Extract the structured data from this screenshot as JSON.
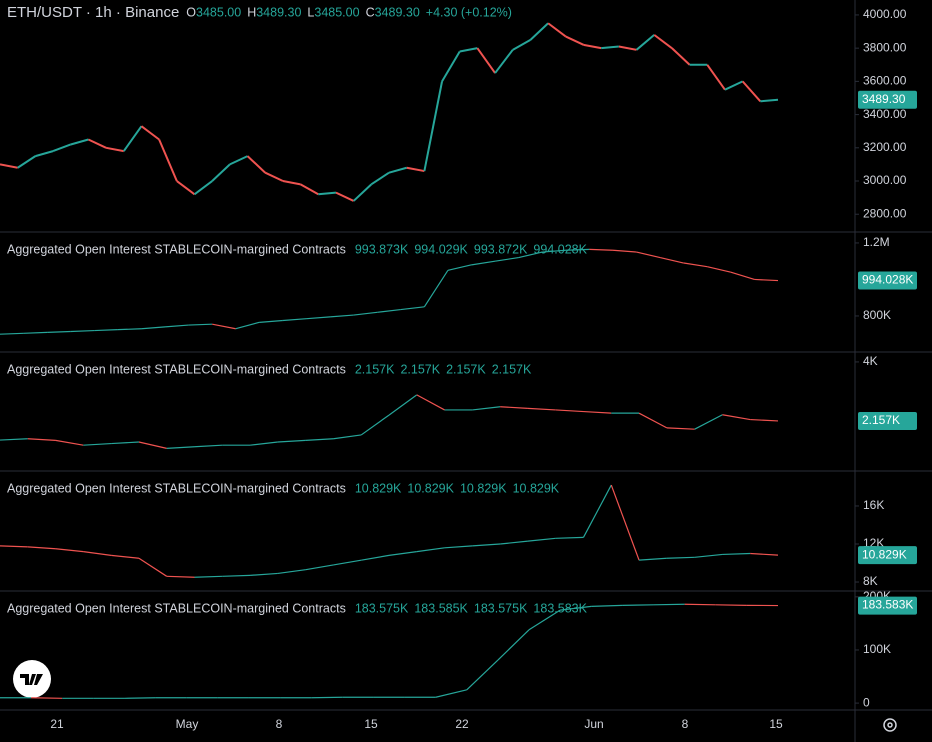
{
  "header": {
    "title": "ETH/USDT · 1h · Binance",
    "ohlc": [
      {
        "key": "O",
        "value": "3485.00"
      },
      {
        "key": "H",
        "value": "3489.30"
      },
      {
        "key": "L",
        "value": "3485.00"
      },
      {
        "key": "C",
        "value": "3489.30"
      }
    ],
    "change": "+4.30 (+0.12%)"
  },
  "panes": [
    {
      "ylim": [
        4090,
        2699
      ],
      "yticks": [
        {
          "value": 4000,
          "label": "4000.00"
        },
        {
          "value": 3800,
          "label": "3800.00"
        },
        {
          "value": 3600,
          "label": "3600.00"
        },
        {
          "value": 3400,
          "label": "3400.00"
        },
        {
          "value": 3200,
          "label": "3200.00"
        },
        {
          "value": 3000,
          "label": "3000.00"
        },
        {
          "value": 2800,
          "label": "2800.00"
        }
      ],
      "last": {
        "value": 3489.3,
        "label": "3489.30"
      },
      "values": [
        3100,
        3080,
        3150,
        3180,
        3220,
        3250,
        3200,
        3180,
        3330,
        3250,
        3000,
        2920,
        3000,
        3100,
        3150,
        3050,
        3000,
        2980,
        2920,
        2930,
        2880,
        2980,
        3050,
        3080,
        3060,
        3600,
        3780,
        3800,
        3650,
        3790,
        3850,
        3950,
        3870,
        3820,
        3800,
        3810,
        3790,
        3880,
        3800,
        3700,
        3700,
        3550,
        3600,
        3480,
        3489.3
      ]
    },
    {
      "name": "Aggregated Open Interest STABLECOIN-margined Contracts",
      "readout": [
        "993.873K",
        "994.029K",
        "993.872K",
        "994.028K"
      ],
      "ylim": [
        1260,
        608
      ],
      "yticks": [
        {
          "value": 1200,
          "label": "1.2M"
        },
        {
          "value": 800,
          "label": "800K"
        }
      ],
      "last": {
        "value": 994.028,
        "label": "994.028K"
      },
      "values": [
        700,
        705,
        710,
        715,
        720,
        725,
        730,
        740,
        750,
        755,
        730,
        765,
        775,
        785,
        795,
        805,
        820,
        835,
        850,
        1050,
        1080,
        1100,
        1120,
        1150,
        1160,
        1165,
        1160,
        1150,
        1120,
        1090,
        1070,
        1040,
        1000,
        994.028
      ]
    },
    {
      "name": "Aggregated Open Interest STABLECOIN-margined Contracts",
      "readout": [
        "2.157K",
        "2.157K",
        "2.157K",
        "2.157K"
      ],
      "ylim": [
        4.31,
        0.625
      ],
      "yticks": [
        {
          "value": 4,
          "label": "4K"
        }
      ],
      "last": {
        "value": 2.157,
        "label": "2.157K"
      },
      "values": [
        1.56,
        1.6,
        1.55,
        1.4,
        1.45,
        1.5,
        1.3,
        1.35,
        1.4,
        1.4,
        1.5,
        1.55,
        1.6,
        1.72,
        2.34,
        2.97,
        2.5,
        2.5,
        2.6,
        2.55,
        2.5,
        2.45,
        2.4,
        2.4,
        1.94,
        1.9,
        2.35,
        2.2,
        2.157
      ]
    },
    {
      "name": "Aggregated Open Interest STABLECOIN-margined Contracts",
      "readout": [
        "10.829K",
        "10.829K",
        "10.829K",
        "10.829K"
      ],
      "ylim": [
        19.68,
        7.16
      ],
      "yticks": [
        {
          "value": 16,
          "label": "16K"
        },
        {
          "value": 12,
          "label": "12K"
        },
        {
          "value": 8,
          "label": "8K"
        }
      ],
      "last": {
        "value": 10.829,
        "label": "10.829K"
      },
      "values": [
        11.8,
        11.7,
        11.5,
        11.2,
        10.8,
        10.5,
        8.6,
        8.5,
        8.6,
        8.7,
        8.9,
        9.3,
        9.8,
        10.3,
        10.8,
        11.2,
        11.6,
        11.8,
        12.0,
        12.3,
        12.6,
        12.7,
        18.2,
        10.3,
        10.5,
        10.6,
        10.9,
        11.0,
        10.829
      ]
    },
    {
      "name": "Aggregated Open Interest STABLECOIN-margined Contracts",
      "readout": [
        "183.575K",
        "183.585K",
        "183.575K",
        "183.583K"
      ],
      "ylim": [
        211,
        -13
      ],
      "yticks": [
        {
          "value": 200,
          "label": "200K"
        },
        {
          "value": 100,
          "label": "100K"
        },
        0
      ],
      "last": {
        "value": 183.583,
        "label": "183.583K"
      },
      "values": [
        10,
        10,
        9,
        9,
        9,
        10,
        10,
        10,
        10,
        10,
        10,
        11,
        11,
        11,
        11,
        25,
        81,
        138,
        175,
        182,
        184,
        185,
        186,
        185,
        184,
        183.583
      ]
    }
  ],
  "time_axis": [
    "21",
    "May",
    "8",
    "15",
    "22",
    "Jun",
    "8",
    "15"
  ]
}
